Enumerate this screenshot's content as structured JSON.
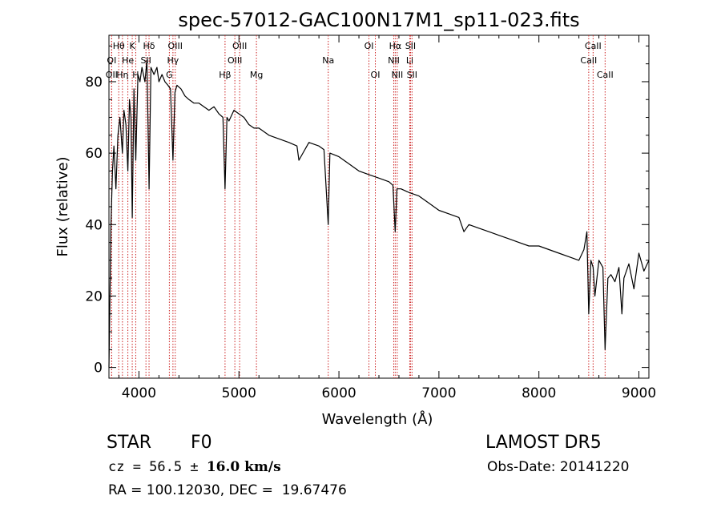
{
  "chart_data": {
    "type": "line",
    "title": "spec-57012-GAC100N17M1_sp11-023.fits",
    "xlabel": "Wavelength (Å)",
    "ylabel": "Flux (relative)",
    "xlim": [
      3700,
      9100
    ],
    "ylim": [
      -3,
      93
    ],
    "xticks": [
      4000,
      5000,
      6000,
      7000,
      8000,
      9000
    ],
    "xtick_labels": [
      "4000",
      "5000",
      "6000",
      "7000",
      "8000",
      "9000"
    ],
    "yticks": [
      0,
      20,
      40,
      60,
      80
    ],
    "ytick_labels": [
      "0",
      "20",
      "40",
      "60",
      "80"
    ],
    "grid": false,
    "line_color": "#000000",
    "marker_color": "#cc2222",
    "spectrum": {
      "x": [
        3700,
        3720,
        3735,
        3750,
        3770,
        3790,
        3810,
        3835,
        3850,
        3870,
        3889,
        3905,
        3920,
        3933,
        3950,
        3968,
        3990,
        4010,
        4030,
        4060,
        4080,
        4101,
        4120,
        4150,
        4180,
        4200,
        4230,
        4260,
        4290,
        4315,
        4340,
        4360,
        4380,
        4420,
        4460,
        4500,
        4550,
        4600,
        4650,
        4700,
        4750,
        4800,
        4840,
        4861,
        4880,
        4900,
        4950,
        5000,
        5050,
        5100,
        5150,
        5200,
        5300,
        5400,
        5500,
        5580,
        5600,
        5700,
        5800,
        5850,
        5893,
        5910,
        6000,
        6100,
        6200,
        6300,
        6400,
        6500,
        6540,
        6563,
        6580,
        6620,
        6700,
        6800,
        6900,
        7000,
        7100,
        7200,
        7250,
        7300,
        7400,
        7500,
        7600,
        7700,
        7800,
        7900,
        8000,
        8100,
        8200,
        8300,
        8400,
        8450,
        8480,
        8498,
        8520,
        8542,
        8560,
        8600,
        8640,
        8662,
        8690,
        8720,
        8760,
        8800,
        8830,
        8850,
        8900,
        8950,
        9000,
        9050,
        9100
      ],
      "y": [
        0,
        40,
        55,
        62,
        50,
        65,
        70,
        60,
        72,
        68,
        55,
        75,
        70,
        42,
        78,
        58,
        82,
        80,
        84,
        80,
        86,
        50,
        84,
        82,
        84,
        80,
        82,
        80,
        79,
        78,
        58,
        77,
        79,
        78,
        76,
        75,
        74,
        74,
        73,
        72,
        73,
        71,
        70,
        50,
        70,
        69,
        72,
        71,
        70,
        68,
        67,
        67,
        65,
        64,
        63,
        62,
        58,
        63,
        62,
        61,
        40,
        60,
        59,
        57,
        55,
        54,
        53,
        52,
        51,
        38,
        50,
        50,
        49,
        48,
        46,
        44,
        43,
        42,
        38,
        40,
        39,
        38,
        37,
        36,
        35,
        34,
        34,
        33,
        32,
        31,
        30,
        33,
        38,
        15,
        30,
        28,
        20,
        30,
        28,
        5,
        25,
        26,
        24,
        28,
        15,
        25,
        29,
        22,
        32,
        27,
        30
      ]
    },
    "line_markers": [
      {
        "label": "Hθ",
        "wavelength": 3798,
        "row": 0
      },
      {
        "label": "OI",
        "wavelength": 3727,
        "row": 1
      },
      {
        "label": "OII",
        "wavelength": 3727,
        "row": 2
      },
      {
        "label": "Hη",
        "wavelength": 3835,
        "row": 2
      },
      {
        "label": "He",
        "wavelength": 3889,
        "row": 1
      },
      {
        "label": "K",
        "wavelength": 3933,
        "row": 0
      },
      {
        "label": "H",
        "wavelength": 3968,
        "row": 2
      },
      {
        "label": "Hδ",
        "wavelength": 4101,
        "row": 0
      },
      {
        "label": "SII",
        "wavelength": 4070,
        "row": 1
      },
      {
        "label": "OIII",
        "wavelength": 4363,
        "row": 0
      },
      {
        "label": "Hγ",
        "wavelength": 4340,
        "row": 1
      },
      {
        "label": "G",
        "wavelength": 4304,
        "row": 2
      },
      {
        "label": "Hβ",
        "wavelength": 4861,
        "row": 2
      },
      {
        "label": "OIII",
        "wavelength": 5007,
        "row": 0
      },
      {
        "label": "OIII",
        "wavelength": 4959,
        "row": 1
      },
      {
        "label": "Mg",
        "wavelength": 5175,
        "row": 2
      },
      {
        "label": "Na",
        "wavelength": 5893,
        "row": 1
      },
      {
        "label": "OI",
        "wavelength": 6300,
        "row": 0
      },
      {
        "label": "OI",
        "wavelength": 6364,
        "row": 2
      },
      {
        "label": "Hα",
        "wavelength": 6563,
        "row": 0
      },
      {
        "label": "NII",
        "wavelength": 6548,
        "row": 1
      },
      {
        "label": "NII",
        "wavelength": 6583,
        "row": 2
      },
      {
        "label": "SII",
        "wavelength": 6716,
        "row": 0
      },
      {
        "label": "Li",
        "wavelength": 6708,
        "row": 1
      },
      {
        "label": "SII",
        "wavelength": 6731,
        "row": 2
      },
      {
        "label": "CaII",
        "wavelength": 8542,
        "row": 0
      },
      {
        "label": "CaII",
        "wavelength": 8498,
        "row": 1
      },
      {
        "label": "CaII",
        "wavelength": 8662,
        "row": 2
      }
    ]
  },
  "info": {
    "star_label": "STAR",
    "star_class": "F0",
    "survey": "LAMOST DR5",
    "cz_prefix": "cz = 56.5 ± ",
    "cz_bold": "16.0 km/s",
    "obs_date": "Obs-Date: 20141220",
    "radec": "RA = 100.12030, DEC =  19.67476"
  }
}
